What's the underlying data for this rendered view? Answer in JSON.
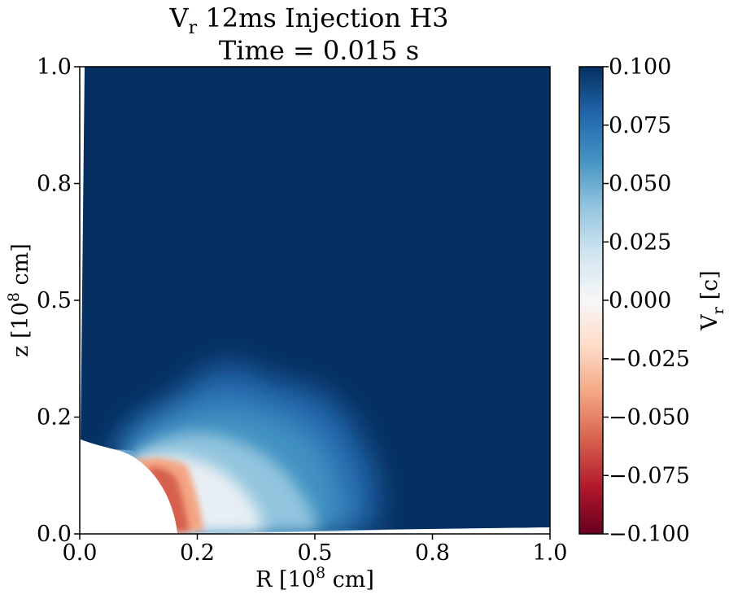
{
  "chart_data": {
    "type": "heatmap",
    "title_line1_main": "V",
    "title_line1_sub": "r",
    "title_line1_rest": " 12ms Injection H3",
    "title_line2": "Time = 0.015 s",
    "xlabel_main": "R [10",
    "xlabel_sup": "8",
    "xlabel_rest": " cm]",
    "ylabel_main": "z [10",
    "ylabel_sup": "8",
    "ylabel_rest": " cm]",
    "xlim": [
      0.0,
      1.0
    ],
    "ylim": [
      0.0,
      1.0
    ],
    "x_ticks": [
      0.0,
      0.25,
      0.5,
      0.75,
      1.0
    ],
    "x_tick_labels": [
      "0.0",
      "0.2",
      "0.5",
      "0.8",
      "1.0"
    ],
    "y_ticks": [
      0.0,
      0.25,
      0.5,
      0.75,
      1.0
    ],
    "y_tick_labels": [
      "0.0",
      "0.2",
      "0.5",
      "0.8",
      "1.0"
    ],
    "colorbar": {
      "label_main": "V",
      "label_sub": "r",
      "label_rest": "  [c]",
      "vmin": -0.1,
      "vmax": 0.1,
      "colormap": "RdBu",
      "ticks": [
        0.1,
        0.075,
        0.05,
        0.025,
        0.0,
        -0.025,
        -0.05,
        -0.075,
        -0.1
      ],
      "tick_labels": [
        "0.100",
        "0.075",
        "0.050",
        "0.025",
        "0.000",
        "−0.025",
        "−0.050",
        "−0.075",
        "−0.100"
      ]
    },
    "field": {
      "background_value": 0.1,
      "excised_core": "white region near origin, radius ~0.16 in R, ~0.18 in z",
      "features": [
        {
          "name": "outflow plume",
          "center_R": 0.35,
          "center_z": 0.12,
          "value_range": [
            0.0,
            0.06
          ]
        },
        {
          "name": "infall shell",
          "center_R": 0.2,
          "center_z": 0.07,
          "value_range": [
            -0.05,
            -0.01
          ]
        }
      ]
    }
  },
  "colors": {
    "max_blue": "#053061",
    "min_red": "#67001f",
    "neutral": "#f7f7f7"
  }
}
